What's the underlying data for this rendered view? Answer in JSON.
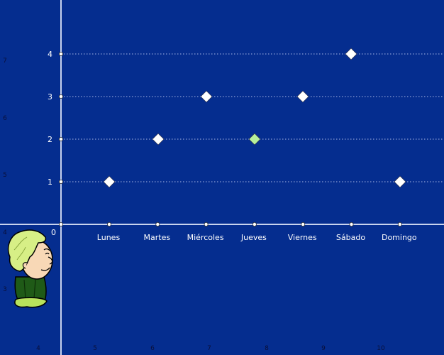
{
  "chart_data": {
    "type": "scatter",
    "title": "",
    "xlabel": "",
    "ylabel": "",
    "categories": [
      "Lunes",
      "Martes",
      "Miércoles",
      "Jueves",
      "Viernes",
      "Sábado",
      "Domingo"
    ],
    "values": [
      1,
      2,
      3,
      2,
      3,
      4,
      1
    ],
    "highlight_index": 3,
    "y_ticks": [
      "1",
      "2",
      "3",
      "4"
    ],
    "origin_label": "0",
    "ylim": [
      0,
      4
    ],
    "grid": "horizontal dotted",
    "colors": {
      "background": "#052d8f",
      "axis": "#c9d3ee",
      "grid": "#aab8e4",
      "point": "#ffffff",
      "highlight": "#b7f09a",
      "text": "#ffffff",
      "faint_text": "#0a0f3a"
    },
    "outer_x_ticks": [
      "4",
      "5",
      "6",
      "7",
      "8",
      "9",
      "10"
    ],
    "outer_y_ticks": [
      "7",
      "6",
      "5",
      "4",
      "3"
    ]
  },
  "character": {
    "icon": "student-character-icon"
  }
}
